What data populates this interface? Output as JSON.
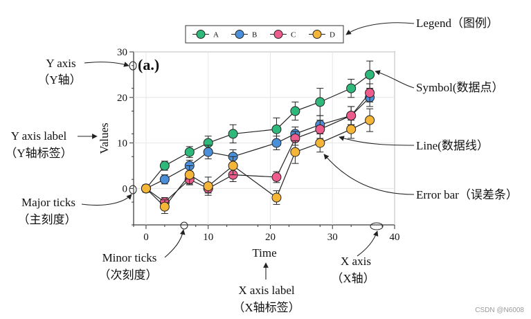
{
  "chart_data": {
    "type": "line",
    "title": "",
    "panel_label": "(a.)",
    "xlabel": "Time",
    "ylabel": "Values",
    "xlim": [
      -2,
      40
    ],
    "ylim": [
      -8,
      30
    ],
    "xticks": [
      0,
      10,
      20,
      30,
      40
    ],
    "yticks": [
      0,
      10,
      20,
      30
    ],
    "grid": true,
    "legend_position": "top-center",
    "x": [
      0,
      3,
      7,
      10,
      14,
      21,
      24,
      28,
      33,
      36
    ],
    "series": [
      {
        "name": "A",
        "color": "#2eb87a",
        "values": [
          0,
          5,
          8,
          10,
          12,
          13,
          17,
          19,
          22,
          25
        ],
        "errors": [
          0.8,
          1,
          1.2,
          1.5,
          2,
          2.5,
          2,
          3,
          2,
          3
        ]
      },
      {
        "name": "B",
        "color": "#4a8fd9",
        "values": [
          0,
          2,
          5,
          8,
          7,
          10,
          12,
          14,
          16,
          20
        ],
        "errors": [
          0.8,
          1,
          1.2,
          1.5,
          1.5,
          1.5,
          1.5,
          2,
          2,
          2
        ]
      },
      {
        "name": "C",
        "color": "#ee5c8e",
        "values": [
          0,
          -3,
          2,
          0,
          3,
          2.5,
          11,
          13,
          16,
          21
        ],
        "errors": [
          0.8,
          1,
          1.2,
          1,
          1.5,
          1.2,
          1.5,
          2,
          2,
          2
        ]
      },
      {
        "name": "D",
        "color": "#f5b638",
        "values": [
          0,
          -4,
          3,
          0.5,
          5,
          -2,
          8,
          10,
          13,
          15
        ],
        "errors": [
          0.8,
          1.5,
          2,
          2,
          2,
          1.5,
          2.5,
          2,
          2,
          2.5
        ]
      }
    ]
  },
  "annotations": {
    "legend": "Legend（图例）",
    "y_axis": "Y axis",
    "y_axis_cn": "（Y轴）",
    "y_axis_label": "Y axis label",
    "y_axis_label_cn": "（Y轴标签）",
    "major_ticks": "Major ticks",
    "major_ticks_cn": "（主刻度）",
    "minor_ticks": "Minor ticks",
    "minor_ticks_cn": "（次刻度）",
    "x_axis_label": "X axis label",
    "x_axis_label_cn": "（X轴标签）",
    "x_axis": "X axis",
    "x_axis_cn": "（X轴）",
    "symbol": "Symbol(数据点）",
    "line": "Line(数据线）",
    "error_bar": "Error bar（误差条）"
  },
  "watermark": "CSDN @N6008"
}
